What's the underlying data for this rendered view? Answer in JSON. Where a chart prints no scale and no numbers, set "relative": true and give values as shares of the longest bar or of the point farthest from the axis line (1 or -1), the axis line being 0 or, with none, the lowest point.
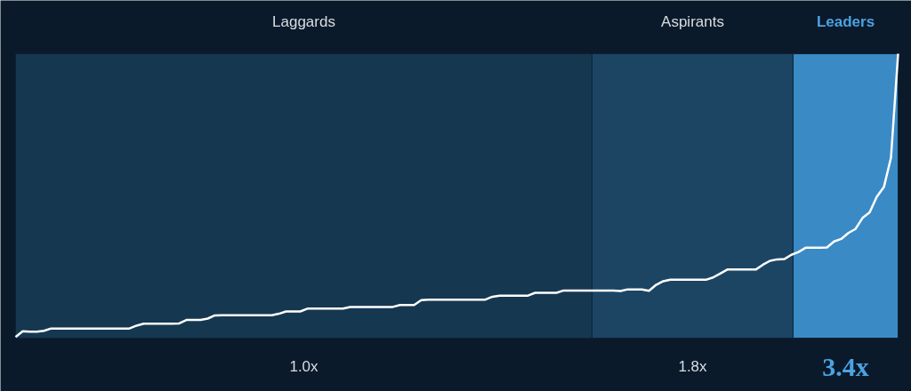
{
  "chart_data": {
    "type": "line",
    "relative": true,
    "tick_labels": false,
    "categories": [
      null,
      null,
      null,
      null,
      null,
      null,
      null,
      null,
      null,
      null,
      null,
      null,
      null,
      null,
      null,
      null,
      null,
      null,
      null,
      null,
      null,
      null,
      null,
      null,
      null,
      null,
      null,
      null,
      null,
      null,
      null,
      null,
      null,
      null,
      null,
      null,
      null,
      null,
      null,
      null,
      null,
      null,
      null,
      null,
      null,
      null,
      null,
      null,
      null,
      null,
      null,
      null,
      null,
      null,
      null,
      null,
      null,
      null,
      null,
      null,
      null,
      null,
      null,
      null,
      null,
      null,
      null,
      null,
      null,
      null,
      null,
      null,
      null,
      null,
      null,
      null,
      null,
      null,
      null,
      null,
      null,
      null,
      null,
      null,
      null,
      null,
      null,
      null,
      null,
      null,
      null,
      null,
      null,
      null,
      null,
      null,
      null,
      null,
      null,
      null,
      null,
      null,
      null,
      null,
      null,
      null,
      null,
      null,
      null,
      null,
      null,
      null,
      null,
      null,
      null,
      null,
      null,
      null,
      null,
      null,
      null,
      null,
      null,
      null,
      null
    ],
    "series": [
      {
        "color": "#ffffff",
        "values": [
          0,
          0.02,
          0.019,
          0.019,
          0.022,
          0.03,
          0.03,
          0.03,
          0.03,
          0.03,
          0.03,
          0.03,
          0.03,
          0.03,
          0.03,
          0.03,
          0.03,
          0.04,
          0.047,
          0.047,
          0.047,
          0.047,
          0.047,
          0.048,
          0.06,
          0.06,
          0.06,
          0.065,
          0.076,
          0.077,
          0.077,
          0.077,
          0.077,
          0.077,
          0.077,
          0.077,
          0.077,
          0.082,
          0.09,
          0.09,
          0.09,
          0.1,
          0.1,
          0.1,
          0.1,
          0.1,
          0.1,
          0.106,
          0.106,
          0.106,
          0.106,
          0.106,
          0.106,
          0.106,
          0.113,
          0.113,
          0.113,
          0.13,
          0.132,
          0.132,
          0.132,
          0.132,
          0.132,
          0.132,
          0.132,
          0.132,
          0.132,
          0.142,
          0.146,
          0.146,
          0.146,
          0.146,
          0.146,
          0.156,
          0.156,
          0.156,
          0.156,
          0.164,
          0.164,
          0.164,
          0.164,
          0.164,
          0.164,
          0.164,
          0.164,
          0.162,
          0.168,
          0.168,
          0.168,
          0.163,
          0.184,
          0.197,
          0.202,
          0.202,
          0.202,
          0.202,
          0.202,
          0.202,
          0.21,
          0.224,
          0.238,
          0.238,
          0.238,
          0.238,
          0.238,
          0.255,
          0.269,
          0.274,
          0.275,
          0.29,
          0.3,
          0.315,
          0.315,
          0.315,
          0.316,
          0.337,
          0.346,
          0.367,
          0.381,
          0.42,
          0.44,
          0.495,
          0.529,
          0.633,
          1
        ]
      }
    ],
    "annotations": [
      "Laggards",
      "Aspirants",
      "Leaders",
      "1.0x",
      "1.8x",
      "3.4x"
    ]
  }
}
